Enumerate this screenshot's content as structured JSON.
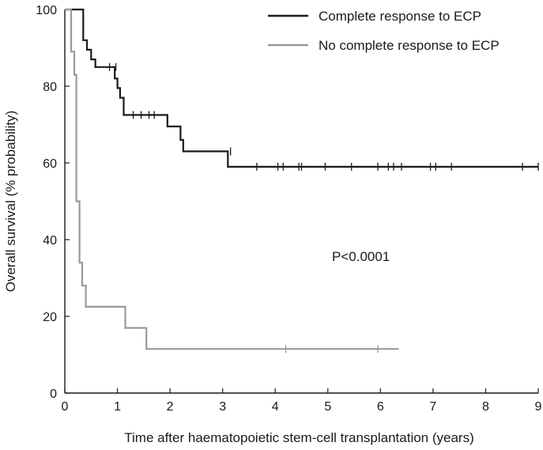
{
  "chart_data": {
    "type": "line",
    "step": true,
    "title": "",
    "xlabel": "Time after haematopoietic stem-cell transplantation (years)",
    "ylabel": "Overall survival (% probability)",
    "xlim": [
      0,
      9
    ],
    "ylim": [
      0,
      100
    ],
    "xticks": [
      "0",
      "1",
      "2",
      "3",
      "4",
      "5",
      "6",
      "7",
      "8",
      "9"
    ],
    "yticks": [
      "0",
      "20",
      "40",
      "60",
      "80",
      "100"
    ],
    "grid": false,
    "legend_position": "top-right",
    "annotation": "P<0.0001",
    "series": [
      {
        "name": "Complete response to ECP",
        "color": "#1a1a1a",
        "points": [
          [
            0,
            100
          ],
          [
            0.35,
            100
          ],
          [
            0.35,
            92
          ],
          [
            0.42,
            92
          ],
          [
            0.42,
            89.5
          ],
          [
            0.5,
            89.5
          ],
          [
            0.5,
            87
          ],
          [
            0.58,
            87
          ],
          [
            0.58,
            85
          ],
          [
            0.95,
            85
          ],
          [
            0.95,
            82
          ],
          [
            1.0,
            82
          ],
          [
            1.0,
            79.5
          ],
          [
            1.05,
            79.5
          ],
          [
            1.05,
            77
          ],
          [
            1.12,
            77
          ],
          [
            1.12,
            72.5
          ],
          [
            1.95,
            72.5
          ],
          [
            1.95,
            69.5
          ],
          [
            2.2,
            69.5
          ],
          [
            2.2,
            66
          ],
          [
            2.25,
            66
          ],
          [
            2.25,
            63
          ],
          [
            3.1,
            63
          ],
          [
            3.1,
            59
          ],
          [
            9.0,
            59
          ]
        ],
        "censored": [
          [
            0.85,
            85
          ],
          [
            0.97,
            85
          ],
          [
            1.3,
            72.5
          ],
          [
            1.45,
            72.5
          ],
          [
            1.6,
            72.5
          ],
          [
            1.7,
            72.5
          ],
          [
            3.15,
            63
          ],
          [
            3.65,
            59
          ],
          [
            4.05,
            59
          ],
          [
            4.15,
            59
          ],
          [
            4.45,
            59
          ],
          [
            4.5,
            59
          ],
          [
            4.95,
            59
          ],
          [
            5.45,
            59
          ],
          [
            5.95,
            59
          ],
          [
            6.15,
            59
          ],
          [
            6.25,
            59
          ],
          [
            6.4,
            59
          ],
          [
            6.95,
            59
          ],
          [
            7.05,
            59
          ],
          [
            7.35,
            59
          ],
          [
            8.7,
            59
          ],
          [
            9.0,
            59
          ]
        ]
      },
      {
        "name": "No complete response to ECP",
        "color": "#999999",
        "points": [
          [
            0,
            100
          ],
          [
            0.12,
            100
          ],
          [
            0.12,
            89
          ],
          [
            0.18,
            89
          ],
          [
            0.18,
            83
          ],
          [
            0.22,
            83
          ],
          [
            0.22,
            50
          ],
          [
            0.28,
            50
          ],
          [
            0.28,
            34
          ],
          [
            0.33,
            34
          ],
          [
            0.33,
            28
          ],
          [
            0.4,
            28
          ],
          [
            0.4,
            22.5
          ],
          [
            1.15,
            22.5
          ],
          [
            1.15,
            17
          ],
          [
            1.55,
            17
          ],
          [
            1.55,
            11.5
          ],
          [
            6.35,
            11.5
          ]
        ],
        "censored": [
          [
            4.2,
            11.5
          ],
          [
            5.95,
            11.5
          ]
        ]
      }
    ]
  }
}
